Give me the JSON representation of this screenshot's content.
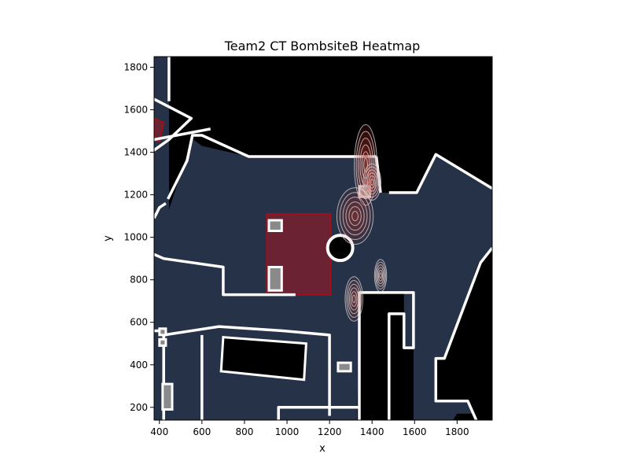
{
  "chart_data": {
    "type": "heatmap",
    "title": "Team2 CT BombsiteB Heatmap",
    "xlabel": "x",
    "ylabel": "y",
    "xlim": [
      375,
      1965
    ],
    "ylim": [
      140,
      1850
    ],
    "xticks": [
      400,
      600,
      800,
      1000,
      1200,
      1400,
      1600,
      1800
    ],
    "yticks": [
      200,
      400,
      600,
      800,
      1000,
      1200,
      1400,
      1600,
      1800
    ],
    "grid": false,
    "colors": {
      "map_background": "#000000",
      "floor": "#263248",
      "walls": "#ffffff",
      "bombsite": "#6b2232",
      "bombsite_border": "#a0101a",
      "heat": "#b03028",
      "contour": "#d8d8d8"
    },
    "hotspots": [
      {
        "x": 1370,
        "y": 1340,
        "sx": 28,
        "sy": 100,
        "intensity": 1.0
      },
      {
        "x": 1400,
        "y": 1260,
        "sx": 22,
        "sy": 45,
        "intensity": 0.9
      },
      {
        "x": 1320,
        "y": 1100,
        "sx": 45,
        "sy": 70,
        "intensity": 0.55
      },
      {
        "x": 1315,
        "y": 710,
        "sx": 22,
        "sy": 55,
        "intensity": 0.45
      },
      {
        "x": 1440,
        "y": 820,
        "sx": 15,
        "sy": 40,
        "intensity": 0.3
      }
    ],
    "bombsite_area": {
      "x0": 905,
      "x1": 1205,
      "y0": 730,
      "y1": 1110
    }
  }
}
